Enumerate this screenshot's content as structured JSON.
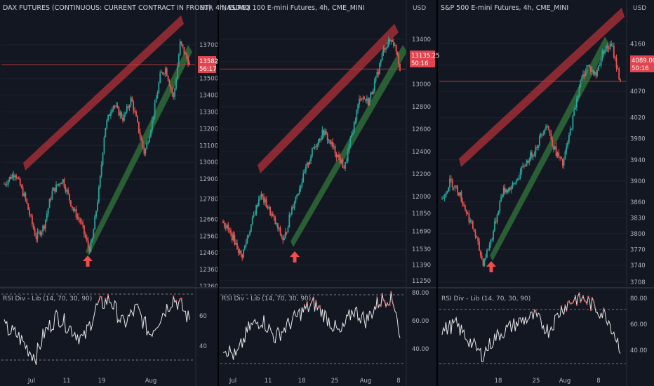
{
  "colors": {
    "background": "#131722",
    "up": "#26a69a",
    "down": "#ef5350",
    "resistance_band": "#b2323a",
    "support_band": "#2f6b37",
    "price_line": "#b83a3a",
    "price_tag": "#e0444f",
    "rsi_line": "#e8e8e8",
    "rsi_overbought": "#e05555",
    "text": "#b2b5be",
    "grid": "#1e222d",
    "divider": "#2a2e39",
    "arrow": "#f24c4c"
  },
  "panels": [
    {
      "title": "DAX FUTURES (CONTINUOUS: CURRENT CONTRACT IN FRONT), 4h, EUREX",
      "currency": "EUR",
      "price_tag": {
        "value": "13582",
        "timer": "56:17"
      },
      "rsi_label": "RSI Div - Lib (14, 70, 30, 90)",
      "x_labels": [
        "Jul",
        "11",
        "19",
        "Aug"
      ],
      "rsi_ticks": [
        "60",
        "40"
      ],
      "arrow_icon": "up-arrow-icon"
    },
    {
      "title": "NASDAQ 100 E-mini Futures, 4h, CME_MINI",
      "currency": "USD",
      "price_tag": {
        "value": "13135.25",
        "timer": "50:16"
      },
      "rsi_label": "RSI Div - Lib (14, 70, 30, 90)",
      "x_labels": [
        "Jul",
        "11",
        "18",
        "25",
        "Aug",
        "8"
      ],
      "rsi_ticks": [
        "80.00",
        "60.00",
        "40.00"
      ],
      "arrow_icon": "up-arrow-icon"
    },
    {
      "title": "S&P 500 E-mini Futures, 4h, CME_MINI",
      "currency": "USD",
      "price_tag": {
        "value": "4089.00",
        "timer": "50:16"
      },
      "rsi_label": "RSI Div - Lib (14, 70, 30, 90)",
      "x_labels": [
        "18",
        "25",
        "Aug",
        "8"
      ],
      "rsi_ticks": [
        "80.00",
        "60.00",
        "40.00"
      ],
      "arrow_icon": "up-arrow-icon"
    }
  ],
  "chart_data": [
    {
      "type": "candlestick",
      "title": "DAX FUTURES (CONTINUOUS: CURRENT CONTRACT IN FRONT), 4h, EUREX",
      "y_ticks": [
        13700,
        13600,
        13500,
        13400,
        13300,
        13200,
        13100,
        13000,
        12900,
        12780,
        12660,
        12560,
        12460,
        12360,
        12260
      ],
      "ylim": [
        12260,
        13800
      ],
      "last_price": 13582,
      "x_ticks": [
        "Jul",
        "11",
        "19",
        "Aug"
      ],
      "price_path": [
        [
          0,
          12870
        ],
        [
          8,
          12940
        ],
        [
          16,
          12780
        ],
        [
          24,
          12550
        ],
        [
          30,
          12620
        ],
        [
          36,
          12820
        ],
        [
          44,
          12900
        ],
        [
          52,
          12720
        ],
        [
          58,
          12640
        ],
        [
          64,
          12480
        ],
        [
          66,
          12510
        ],
        [
          72,
          12860
        ],
        [
          76,
          13200
        ],
        [
          82,
          13350
        ],
        [
          90,
          13260
        ],
        [
          96,
          13380
        ],
        [
          102,
          13180
        ],
        [
          106,
          13050
        ],
        [
          112,
          13250
        ],
        [
          118,
          13520
        ],
        [
          122,
          13560
        ],
        [
          128,
          13380
        ],
        [
          133,
          13710
        ],
        [
          138,
          13620
        ],
        [
          140,
          13582
        ]
      ],
      "rsi": [
        [
          0,
          52
        ],
        [
          10,
          47
        ],
        [
          20,
          36
        ],
        [
          24,
          33
        ],
        [
          30,
          48
        ],
        [
          40,
          60
        ],
        [
          50,
          52
        ],
        [
          60,
          44
        ],
        [
          70,
          66
        ],
        [
          80,
          71
        ],
        [
          90,
          54
        ],
        [
          100,
          65
        ],
        [
          110,
          48
        ],
        [
          120,
          62
        ],
        [
          128,
          72
        ],
        [
          134,
          66
        ],
        [
          140,
          57
        ]
      ],
      "rsi_levels": [
        70,
        30
      ]
    },
    {
      "type": "candlestick",
      "title": "NASDAQ 100 E-mini Futures, 4h, CME_MINI",
      "y_ticks": [
        13400,
        13200,
        13000,
        12800,
        12600,
        12400,
        12200,
        12000,
        11850,
        11690,
        11530,
        11390,
        11250
      ],
      "ylim": [
        11200,
        13500
      ],
      "last_price": 13135.25,
      "x_ticks": [
        "Jul",
        "11",
        "18",
        "25",
        "Aug",
        "8"
      ],
      "price_path": [
        [
          0,
          11780
        ],
        [
          8,
          11620
        ],
        [
          14,
          11460
        ],
        [
          20,
          11700
        ],
        [
          28,
          12020
        ],
        [
          34,
          11900
        ],
        [
          40,
          11750
        ],
        [
          46,
          11600
        ],
        [
          52,
          11900
        ],
        [
          60,
          12150
        ],
        [
          68,
          12420
        ],
        [
          76,
          12580
        ],
        [
          84,
          12420
        ],
        [
          92,
          12250
        ],
        [
          98,
          12580
        ],
        [
          104,
          12900
        ],
        [
          110,
          12840
        ],
        [
          116,
          13050
        ],
        [
          122,
          13330
        ],
        [
          128,
          13400
        ],
        [
          132,
          13280
        ],
        [
          134,
          13135
        ]
      ],
      "rsi": [
        [
          0,
          42
        ],
        [
          10,
          34
        ],
        [
          20,
          55
        ],
        [
          30,
          61
        ],
        [
          40,
          48
        ],
        [
          50,
          57
        ],
        [
          60,
          66
        ],
        [
          70,
          72
        ],
        [
          80,
          62
        ],
        [
          90,
          50
        ],
        [
          100,
          68
        ],
        [
          110,
          60
        ],
        [
          120,
          74
        ],
        [
          128,
          77
        ],
        [
          133,
          69
        ],
        [
          136,
          46
        ]
      ],
      "rsi_levels": [
        70,
        30
      ]
    },
    {
      "type": "candlestick",
      "title": "S&P 500 E-mini Futures, 4h, CME_MINI",
      "y_ticks": [
        4160,
        4120,
        4070,
        4020,
        3980,
        3940,
        3900,
        3860,
        3830,
        3800,
        3770,
        3740,
        3708
      ],
      "ylim": [
        3700,
        4190
      ],
      "last_price": 4089.0,
      "x_ticks": [
        "18",
        "25",
        "Aug",
        "8"
      ],
      "price_path": [
        [
          0,
          3865
        ],
        [
          6,
          3900
        ],
        [
          12,
          3880
        ],
        [
          18,
          3840
        ],
        [
          24,
          3800
        ],
        [
          28,
          3760
        ],
        [
          30,
          3745
        ],
        [
          36,
          3790
        ],
        [
          44,
          3880
        ],
        [
          52,
          3890
        ],
        [
          60,
          3930
        ],
        [
          68,
          3960
        ],
        [
          76,
          4010
        ],
        [
          82,
          3960
        ],
        [
          88,
          3930
        ],
        [
          94,
          4000
        ],
        [
          100,
          4080
        ],
        [
          106,
          4120
        ],
        [
          112,
          4100
        ],
        [
          118,
          4150
        ],
        [
          124,
          4155
        ],
        [
          128,
          4110
        ],
        [
          130,
          4089
        ]
      ],
      "rsi": [
        [
          0,
          55
        ],
        [
          10,
          60
        ],
        [
          20,
          48
        ],
        [
          30,
          36
        ],
        [
          40,
          50
        ],
        [
          50,
          57
        ],
        [
          60,
          63
        ],
        [
          70,
          66
        ],
        [
          80,
          55
        ],
        [
          90,
          72
        ],
        [
          100,
          80
        ],
        [
          108,
          79
        ],
        [
          116,
          72
        ],
        [
          124,
          66
        ],
        [
          130,
          52
        ],
        [
          134,
          42
        ]
      ],
      "rsi_levels": [
        70,
        30
      ]
    }
  ]
}
